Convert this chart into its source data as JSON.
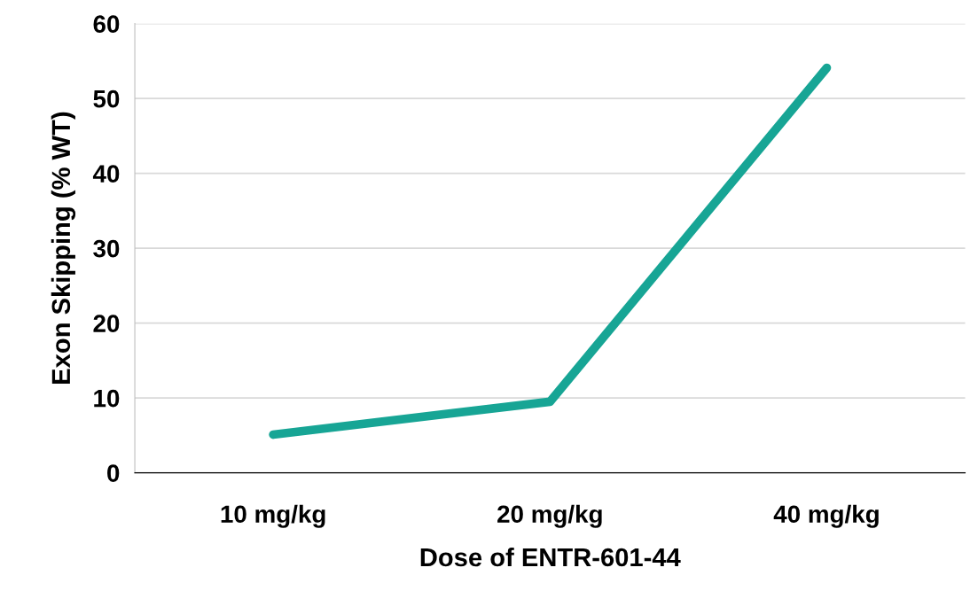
{
  "chart_data": {
    "type": "line",
    "xlabel": "Dose of ENTR-601-44",
    "ylabel": "Exon Skipping (% WT)",
    "categories": [
      "10 mg/kg",
      "20 mg/kg",
      "40 mg/kg"
    ],
    "series": [
      {
        "color": "#17a595",
        "values": [
          5.1,
          9.5,
          54.1
        ]
      }
    ],
    "ylim": [
      0,
      60
    ],
    "yticks": [
      0,
      10,
      20,
      30,
      40,
      50,
      60
    ],
    "grid": "y",
    "marker": "none",
    "line_style": "solid",
    "legend": false
  }
}
